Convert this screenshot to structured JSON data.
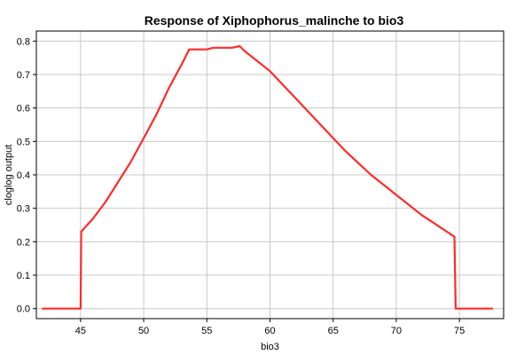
{
  "chart_data": {
    "type": "line",
    "title": "Response of Xiphophorus_malinche to bio3",
    "xlabel": "bio3",
    "ylabel": "cloglog output",
    "xlim": [
      41.5,
      78.5
    ],
    "ylim": [
      -0.03,
      0.83
    ],
    "x_ticks": [
      45,
      50,
      55,
      60,
      65,
      70,
      75
    ],
    "y_ticks": [
      0.0,
      0.1,
      0.2,
      0.3,
      0.4,
      0.5,
      0.6,
      0.7,
      0.8
    ],
    "x_tick_labels": [
      "45",
      "50",
      "55",
      "60",
      "65",
      "70",
      "75"
    ],
    "y_tick_labels": [
      "0.0",
      "0.1",
      "0.2",
      "0.3",
      "0.4",
      "0.5",
      "0.6",
      "0.7",
      "0.8"
    ],
    "grid": true,
    "series": [
      {
        "color": "#ff2a2a",
        "x": [
          42,
          45.0,
          45.05,
          46,
          47,
          48,
          49,
          50,
          51,
          52,
          53,
          53.6,
          55,
          55.5,
          57,
          57.6,
          58,
          59,
          60,
          61,
          62,
          63,
          64,
          65,
          66,
          67,
          68,
          69,
          70,
          71,
          72,
          73,
          74,
          74.6,
          74.7,
          77.6
        ],
        "y": [
          0.0,
          0.0,
          0.23,
          0.27,
          0.32,
          0.38,
          0.44,
          0.51,
          0.58,
          0.66,
          0.73,
          0.775,
          0.775,
          0.78,
          0.78,
          0.785,
          0.77,
          0.74,
          0.71,
          0.67,
          0.63,
          0.59,
          0.55,
          0.51,
          0.47,
          0.435,
          0.4,
          0.37,
          0.34,
          0.31,
          0.28,
          0.255,
          0.23,
          0.215,
          0.0,
          0.0
        ]
      }
    ]
  }
}
